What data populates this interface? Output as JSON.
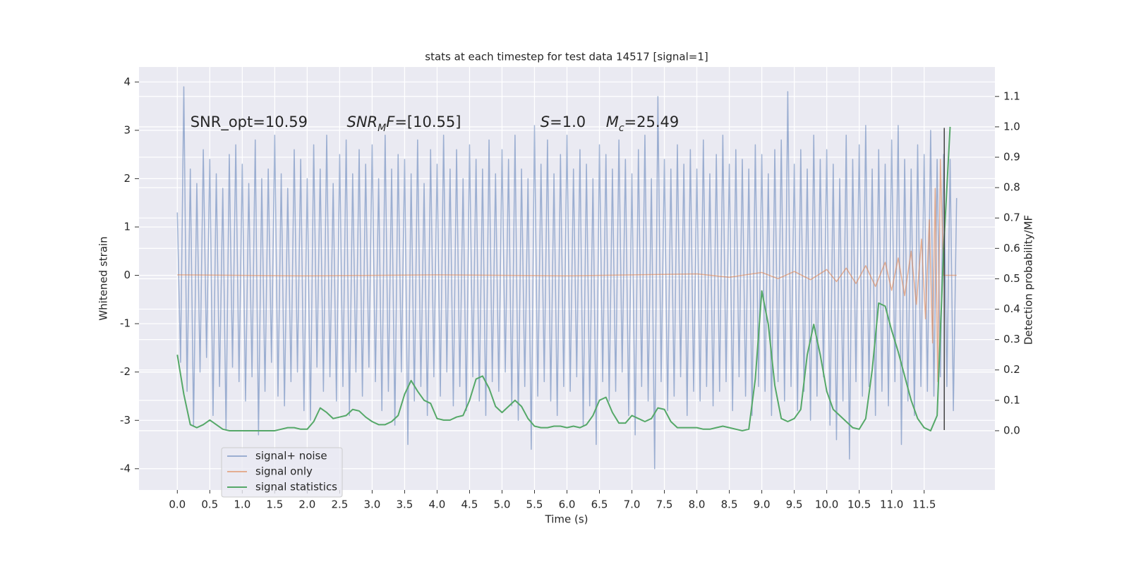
{
  "chart_data": {
    "type": "line",
    "title": "stats at each timestep for test data 14517 [signal=1]",
    "xlabel": "Time (s)",
    "ylabel": "Whitened strain",
    "y2label": "Detection probability/MF",
    "xlim": [
      -0.59,
      12.59
    ],
    "ylim": [
      -4.44,
      4.31
    ],
    "y2lim": [
      -0.195,
      1.197
    ],
    "xticks": [
      {
        "value": 0,
        "label": "0.0"
      },
      0.5,
      {
        "value": 1,
        "label": "1.0"
      },
      1.5,
      {
        "value": 2,
        "label": "2.0"
      },
      2.5,
      {
        "value": 3,
        "label": "3.0"
      },
      3.5,
      {
        "value": 4,
        "label": "4.0"
      },
      4.5,
      {
        "value": 5,
        "label": "5.0"
      },
      5.5,
      {
        "value": 6,
        "label": "6.0"
      },
      6.5,
      {
        "value": 7,
        "label": "7.0"
      },
      7.5,
      {
        "value": 8,
        "label": "8.0"
      },
      8.5,
      {
        "value": 9,
        "label": "9.0"
      },
      9.5,
      {
        "value": 10,
        "label": "10.0"
      },
      10.5,
      {
        "value": 11,
        "label": "11.0"
      },
      11.5
    ],
    "yticks": [
      -4,
      -3,
      -2,
      -1,
      0,
      1,
      2,
      3,
      4
    ],
    "y2ticks": [
      {
        "value": 0,
        "label": "0.0"
      },
      0.1,
      0.2,
      0.3,
      0.4,
      0.5,
      0.6,
      0.7,
      0.8,
      0.9,
      {
        "value": 1,
        "label": "1.0"
      },
      1.1
    ],
    "grid": true,
    "legend": "lower left",
    "series": [
      {
        "name": "signal+ noise",
        "color": "#4c72b0",
        "alpha": 0.5,
        "x": [
          0,
          0.05,
          0.1,
          0.15,
          0.2,
          0.25,
          0.3,
          0.35,
          0.4,
          0.45,
          0.5,
          0.55,
          0.6,
          0.65,
          0.7,
          0.75,
          0.8,
          0.85,
          0.9,
          0.95,
          1,
          1.05,
          1.1,
          1.15,
          1.2,
          1.25,
          1.3,
          1.35,
          1.4,
          1.45,
          1.5,
          1.55,
          1.6,
          1.65,
          1.7,
          1.75,
          1.8,
          1.85,
          1.9,
          1.95,
          2,
          2.05,
          2.1,
          2.15,
          2.2,
          2.25,
          2.3,
          2.35,
          2.4,
          2.45,
          2.5,
          2.55,
          2.6,
          2.65,
          2.7,
          2.75,
          2.8,
          2.85,
          2.9,
          2.95,
          3,
          3.05,
          3.1,
          3.15,
          3.2,
          3.25,
          3.3,
          3.35,
          3.4,
          3.45,
          3.5,
          3.55,
          3.6,
          3.65,
          3.7,
          3.75,
          3.8,
          3.85,
          3.9,
          3.95,
          4,
          4.05,
          4.1,
          4.15,
          4.2,
          4.25,
          4.3,
          4.35,
          4.4,
          4.45,
          4.5,
          4.55,
          4.6,
          4.65,
          4.7,
          4.75,
          4.8,
          4.85,
          4.9,
          4.95,
          5,
          5.05,
          5.1,
          5.15,
          5.2,
          5.25,
          5.3,
          5.35,
          5.4,
          5.45,
          5.5,
          5.55,
          5.6,
          5.65,
          5.7,
          5.75,
          5.8,
          5.85,
          5.9,
          5.95,
          6,
          6.05,
          6.1,
          6.15,
          6.2,
          6.25,
          6.3,
          6.35,
          6.4,
          6.45,
          6.5,
          6.55,
          6.6,
          6.65,
          6.7,
          6.75,
          6.8,
          6.85,
          6.9,
          6.95,
          7,
          7.05,
          7.1,
          7.15,
          7.2,
          7.25,
          7.3,
          7.35,
          7.4,
          7.45,
          7.5,
          7.55,
          7.6,
          7.65,
          7.7,
          7.75,
          7.8,
          7.85,
          7.9,
          7.95,
          8,
          8.05,
          8.1,
          8.15,
          8.2,
          8.25,
          8.3,
          8.35,
          8.4,
          8.45,
          8.5,
          8.55,
          8.6,
          8.65,
          8.7,
          8.75,
          8.8,
          8.85,
          8.9,
          8.95,
          9,
          9.05,
          9.1,
          9.15,
          9.2,
          9.25,
          9.3,
          9.35,
          9.4,
          9.45,
          9.5,
          9.55,
          9.6,
          9.65,
          9.7,
          9.75,
          9.8,
          9.85,
          9.9,
          9.95,
          10,
          10.05,
          10.1,
          10.15,
          10.2,
          10.25,
          10.3,
          10.35,
          10.4,
          10.45,
          10.5,
          10.55,
          10.6,
          10.65,
          10.7,
          10.75,
          10.8,
          10.85,
          10.9,
          10.95,
          11,
          11.05,
          11.1,
          11.15,
          11.2,
          11.25,
          11.3,
          11.35,
          11.4,
          11.45,
          11.5,
          11.55,
          11.6,
          11.65,
          11.7,
          11.75,
          11.8,
          11.85,
          11.9,
          11.95,
          12
        ],
        "values": [
          1.3,
          -1.8,
          3.9,
          -2.4,
          2.2,
          -3.1,
          1.9,
          -2.0,
          2.6,
          -1.7,
          2.4,
          -2.9,
          2.1,
          -2.3,
          1.8,
          -3.2,
          2.5,
          -1.9,
          2.7,
          -2.2,
          2.3,
          -2.6,
          1.9,
          -2.1,
          2.8,
          -3.3,
          2.0,
          -2.4,
          2.2,
          -1.8,
          2.9,
          -2.5,
          2.1,
          -2.7,
          1.8,
          -2.2,
          2.6,
          -2.0,
          2.4,
          -2.8,
          2.0,
          -3.0,
          2.7,
          -1.9,
          2.2,
          -2.4,
          2.9,
          -2.1,
          1.9,
          -2.6,
          2.5,
          -2.3,
          2.8,
          -2.9,
          2.1,
          -2.0,
          2.6,
          -2.5,
          2.3,
          -1.9,
          2.7,
          -2.2,
          2.0,
          -2.8,
          2.9,
          -2.4,
          2.2,
          -3.1,
          2.5,
          -2.0,
          2.4,
          -3.5,
          2.1,
          -2.6,
          2.8,
          -2.3,
          1.9,
          -2.9,
          2.6,
          -2.1,
          2.3,
          -2.5,
          2.9,
          -2.0,
          2.2,
          -2.7,
          2.6,
          -2.3,
          2.0,
          -2.8,
          2.7,
          -2.1,
          2.4,
          -2.6,
          2.2,
          -2.9,
          2.8,
          -2.2,
          2.1,
          -2.4,
          2.6,
          -2.0,
          2.4,
          -2.7,
          2.9,
          -3.0,
          2.2,
          -2.3,
          2.0,
          -3.6,
          3.1,
          -2.5,
          2.3,
          -2.2,
          2.8,
          -2.6,
          2.1,
          -2.9,
          2.5,
          -2.3,
          2.9,
          -2.4,
          2.2,
          -2.1,
          2.6,
          -3.1,
          2.3,
          -2.7,
          2.0,
          -3.5,
          2.7,
          -2.2,
          2.5,
          -2.6,
          2.2,
          -2.4,
          2.8,
          -2.0,
          2.4,
          -2.9,
          2.1,
          -3.3,
          2.6,
          -2.3,
          2.9,
          -2.6,
          2.0,
          -4.0,
          3.7,
          -2.2,
          2.4,
          -2.8,
          2.2,
          -2.5,
          2.7,
          -2.1,
          2.3,
          -2.9,
          2.6,
          -2.4,
          2.2,
          -2.6,
          2.8,
          -2.3,
          2.1,
          -2.7,
          2.5,
          -2.4,
          2.9,
          -2.2,
          2.3,
          -2.8,
          2.6,
          -2.1,
          2.4,
          -2.5,
          2.2,
          -2.9,
          2.7,
          -2.3,
          2.5,
          -2.4,
          2.1,
          -2.9,
          2.6,
          -2.2,
          2.8,
          -2.6,
          3.8,
          -2.3,
          2.3,
          -2.8,
          2.6,
          -2.4,
          2.2,
          -3.0,
          2.9,
          -2.5,
          2.4,
          -2.1,
          2.6,
          -3.1,
          2.3,
          -3.4,
          2.0,
          -2.6,
          2.9,
          -3.8,
          2.4,
          -2.2,
          2.7,
          -2.5,
          3.1,
          -2.3,
          2.2,
          -2.9,
          2.6,
          -2.4,
          2.3,
          -2.7,
          2.8,
          -2.2,
          3.1,
          -3.5,
          2.4,
          -2.6,
          2.2,
          -2.9,
          2.7,
          -2.3,
          2.5,
          -2.4,
          3.0,
          -2.5,
          2.4,
          -2.1,
          2.5,
          -2.3,
          2.4,
          -2.8,
          1.6
        ]
      },
      {
        "name": "signal only",
        "color": "#dd8452",
        "alpha": 0.6,
        "x": [
          0,
          2,
          4,
          6,
          8,
          8.5,
          9,
          9.25,
          9.5,
          9.75,
          10,
          10.15,
          10.3,
          10.45,
          10.6,
          10.75,
          10.9,
          11.0,
          11.1,
          11.2,
          11.3,
          11.38,
          11.46,
          11.52,
          11.58,
          11.63,
          11.67,
          11.71,
          11.75,
          11.8,
          11.9,
          12.0
        ],
        "values": [
          0.01,
          -0.01,
          0.01,
          -0.01,
          0.03,
          -0.04,
          0.06,
          -0.07,
          0.08,
          -0.09,
          0.12,
          -0.13,
          0.15,
          -0.17,
          0.2,
          -0.23,
          0.27,
          -0.31,
          0.36,
          -0.42,
          0.5,
          -0.6,
          0.75,
          -0.9,
          1.15,
          -1.4,
          1.8,
          -2.2,
          2.4,
          0,
          0,
          0
        ]
      },
      {
        "name": "signal statistics",
        "color": "#55a868",
        "alpha": 1,
        "axis": "y2",
        "x": [
          0,
          0.1,
          0.2,
          0.3,
          0.4,
          0.5,
          0.6,
          0.7,
          0.8,
          0.9,
          1,
          1.1,
          1.2,
          1.3,
          1.4,
          1.5,
          1.6,
          1.7,
          1.8,
          1.9,
          2,
          2.1,
          2.2,
          2.3,
          2.4,
          2.5,
          2.6,
          2.7,
          2.8,
          2.9,
          3,
          3.1,
          3.2,
          3.3,
          3.4,
          3.5,
          3.6,
          3.7,
          3.8,
          3.9,
          4,
          4.1,
          4.2,
          4.3,
          4.4,
          4.5,
          4.6,
          4.7,
          4.8,
          4.9,
          5,
          5.1,
          5.2,
          5.3,
          5.4,
          5.5,
          5.6,
          5.7,
          5.8,
          5.9,
          6,
          6.1,
          6.2,
          6.3,
          6.4,
          6.5,
          6.6,
          6.7,
          6.8,
          6.9,
          7,
          7.1,
          7.2,
          7.3,
          7.4,
          7.5,
          7.6,
          7.7,
          7.8,
          7.9,
          8,
          8.1,
          8.2,
          8.3,
          8.4,
          8.5,
          8.6,
          8.7,
          8.8,
          8.9,
          9,
          9.1,
          9.2,
          9.3,
          9.4,
          9.5,
          9.6,
          9.7,
          9.8,
          9.9,
          10,
          10.1,
          10.2,
          10.3,
          10.4,
          10.5,
          10.6,
          10.7,
          10.8,
          10.9,
          11,
          11.1,
          11.2,
          11.3,
          11.4,
          11.5,
          11.6,
          11.7,
          11.8,
          11.9
        ],
        "values": [
          0.25,
          0.12,
          0.02,
          0.01,
          0.02,
          0.035,
          0.02,
          0.005,
          0.0,
          0.0,
          0.0,
          0.0,
          0.0,
          0.0,
          0.0,
          0.0,
          0.005,
          0.01,
          0.01,
          0.005,
          0.005,
          0.03,
          0.075,
          0.06,
          0.04,
          0.045,
          0.05,
          0.07,
          0.065,
          0.045,
          0.03,
          0.02,
          0.02,
          0.03,
          0.05,
          0.12,
          0.165,
          0.13,
          0.1,
          0.09,
          0.04,
          0.035,
          0.035,
          0.045,
          0.05,
          0.1,
          0.17,
          0.18,
          0.14,
          0.08,
          0.06,
          0.08,
          0.1,
          0.08,
          0.04,
          0.015,
          0.01,
          0.01,
          0.015,
          0.015,
          0.01,
          0.015,
          0.01,
          0.02,
          0.05,
          0.1,
          0.11,
          0.06,
          0.025,
          0.025,
          0.05,
          0.04,
          0.03,
          0.04,
          0.075,
          0.07,
          0.03,
          0.01,
          0.01,
          0.01,
          0.01,
          0.005,
          0.005,
          0.01,
          0.015,
          0.01,
          0.005,
          0.0,
          0.005,
          0.17,
          0.46,
          0.35,
          0.15,
          0.04,
          0.03,
          0.04,
          0.07,
          0.25,
          0.35,
          0.25,
          0.13,
          0.07,
          0.05,
          0.03,
          0.01,
          0.005,
          0.04,
          0.2,
          0.42,
          0.41,
          0.33,
          0.26,
          0.18,
          0.1,
          0.04,
          0.01,
          0.0,
          0.05,
          0.6,
          1.0
        ]
      }
    ],
    "vline": {
      "x": 11.81,
      "y": [
        -3.2,
        3.05
      ],
      "color": "#444444"
    },
    "annotations": [
      {
        "x": 0.2,
        "y": 3.16,
        "parts": [
          {
            "text": "SNR_opt=10.59"
          }
        ]
      },
      {
        "x": 2.61,
        "y": 3.16,
        "parts": [
          {
            "text": "SNR",
            "italic": true
          },
          {
            "text": "M",
            "italic": true,
            "sub": true
          },
          {
            "text": "F",
            "italic": true
          },
          {
            "text": "=[10.55]"
          }
        ]
      },
      {
        "x": 5.59,
        "y": 3.16,
        "parts": [
          {
            "text": "S",
            "italic": true
          },
          {
            "text": "=1.0"
          }
        ]
      },
      {
        "x": 6.6,
        "y": 3.16,
        "parts": [
          {
            "text": "M",
            "italic": true
          },
          {
            "text": "c",
            "italic": true,
            "sub": true
          },
          {
            "text": "=25.49"
          }
        ]
      }
    ]
  }
}
